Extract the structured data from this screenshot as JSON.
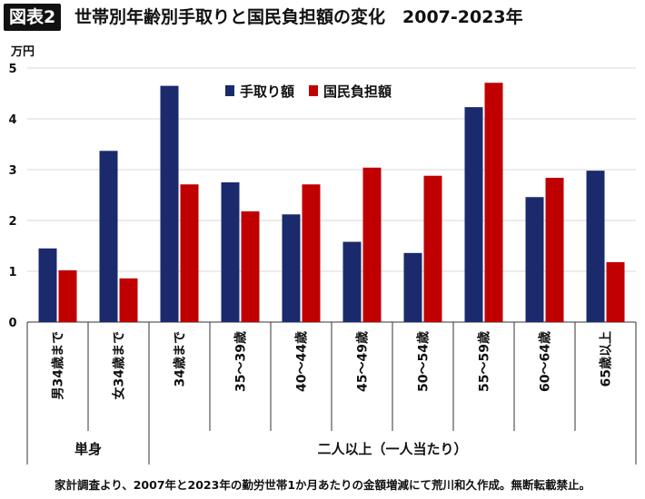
{
  "header": {
    "badge": "図表2",
    "title": "世帯別年齢別手取りと国民負担額の変化　2007-2023年"
  },
  "footer": "家計調査より、2007年と2023年の勤労世帯1か月あたりの金額増減にて荒川和久作成。無断転載禁止。",
  "colors": {
    "takehome": "#1a2a6c",
    "burden": "#c00000",
    "grid": "#d9d9d9",
    "axis": "#333333"
  },
  "chart_data": {
    "type": "bar",
    "unit_label": "万円",
    "ylim": [
      0,
      5
    ],
    "yticks": [
      0,
      1,
      2,
      3,
      4,
      5
    ],
    "legend_position": "top-center",
    "grid": true,
    "categories": [
      "男34歳まで",
      "女34歳まで",
      "34歳まで",
      "35～39歳",
      "40～44歳",
      "45～49歳",
      "50～54歳",
      "55～59歳",
      "60～64歳",
      "65歳以上"
    ],
    "series": [
      {
        "name": "手取り額",
        "color": "#1a2a6c",
        "values": [
          1.45,
          3.37,
          4.65,
          2.75,
          2.12,
          1.58,
          1.36,
          4.23,
          2.46,
          2.98
        ]
      },
      {
        "name": "国民負担額",
        "color": "#c00000",
        "values": [
          1.02,
          0.86,
          2.71,
          2.18,
          2.71,
          3.04,
          2.88,
          4.71,
          2.84,
          1.18
        ]
      }
    ],
    "groups": [
      {
        "label": "単身",
        "span": [
          0,
          1
        ]
      },
      {
        "label": "二人以上（一人当たり）",
        "span": [
          2,
          9
        ]
      }
    ]
  }
}
